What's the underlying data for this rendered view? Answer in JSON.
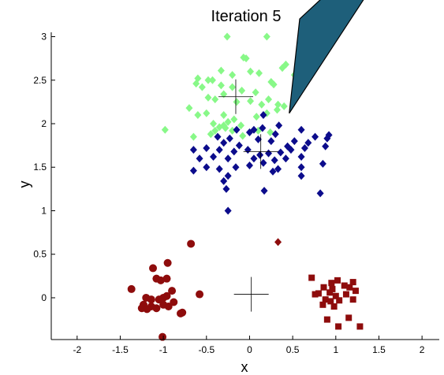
{
  "chart_data": {
    "type": "scatter",
    "title": "Iteration 5",
    "xlabel": "x",
    "ylabel": "y",
    "xlim": [
      -2.3,
      2.2
    ],
    "ylim": [
      -0.48,
      3.05
    ],
    "grid": false,
    "legend": "none",
    "x_ticks": [
      -2,
      -1.5,
      -1,
      -0.5,
      0,
      0.5,
      1,
      1.5,
      2
    ],
    "x_tick_labels": [
      "-2",
      "-1.5",
      "-1",
      "-0.5",
      "0",
      "0.5",
      "1",
      "1.5",
      "2"
    ],
    "y_ticks": [
      0,
      0.5,
      1,
      1.5,
      2,
      2.5,
      3
    ],
    "y_tick_labels": [
      "0",
      "0.5",
      "1",
      "1.5",
      "2",
      "2.5",
      "3"
    ],
    "callout": {
      "color": "#1e5f7a",
      "tip": [
        0.46,
        2.12
      ]
    },
    "series": [
      {
        "color": "#88f888",
        "marker": "diamond",
        "points": [
          [
            -0.26,
            3.0
          ],
          [
            0.2,
            3.0
          ],
          [
            -0.07,
            2.76
          ],
          [
            -0.04,
            2.75
          ],
          [
            0.42,
            2.68
          ],
          [
            0.38,
            2.64
          ],
          [
            -0.33,
            2.61
          ],
          [
            -0.2,
            2.56
          ],
          [
            0.01,
            2.6
          ],
          [
            0.11,
            2.58
          ],
          [
            -0.6,
            2.52
          ],
          [
            -0.48,
            2.5
          ],
          [
            -0.43,
            2.5
          ],
          [
            -0.62,
            2.46
          ],
          [
            0.25,
            2.48
          ],
          [
            0.52,
            2.56
          ],
          [
            -0.55,
            2.42
          ],
          [
            -0.33,
            2.44
          ],
          [
            -0.2,
            2.42
          ],
          [
            -0.09,
            2.38
          ],
          [
            0.07,
            2.36
          ],
          [
            0.28,
            2.45
          ],
          [
            0.22,
            2.28
          ],
          [
            -0.3,
            2.34
          ],
          [
            -0.48,
            2.3
          ],
          [
            -0.4,
            2.28
          ],
          [
            -0.15,
            2.25
          ],
          [
            0.01,
            2.26
          ],
          [
            0.14,
            2.22
          ],
          [
            0.33,
            2.22
          ],
          [
            0.4,
            2.2
          ],
          [
            -0.5,
            2.12
          ],
          [
            -0.7,
            2.18
          ],
          [
            -0.6,
            2.1
          ],
          [
            -0.3,
            2.1
          ],
          [
            -0.18,
            2.05
          ],
          [
            0.08,
            2.08
          ],
          [
            0.2,
            2.12
          ],
          [
            0.32,
            2.16
          ],
          [
            -0.42,
            2.0
          ],
          [
            -0.35,
            1.96
          ],
          [
            -0.28,
            1.95
          ],
          [
            -0.2,
            1.92
          ],
          [
            -0.1,
            1.98
          ],
          [
            0.1,
            1.92
          ],
          [
            -0.4,
            1.92
          ],
          [
            -0.45,
            1.88
          ],
          [
            -0.65,
            1.85
          ],
          [
            -0.98,
            1.93
          ],
          [
            -0.08,
            1.86
          ],
          [
            0.24,
            1.9
          ],
          [
            -0.3,
            1.98
          ],
          [
            -0.25,
            2.02
          ]
        ]
      },
      {
        "color": "#0c0c8c",
        "marker": "diamond",
        "points": [
          [
            0.16,
            2.1
          ],
          [
            -0.15,
            1.93
          ],
          [
            0.05,
            1.93
          ],
          [
            0.15,
            1.95
          ],
          [
            0.34,
            1.98
          ],
          [
            0.6,
            1.93
          ],
          [
            0.76,
            1.85
          ],
          [
            0.9,
            1.83
          ],
          [
            0.92,
            1.87
          ],
          [
            0.0,
            1.9
          ],
          [
            0.3,
            1.88
          ],
          [
            -0.37,
            1.85
          ],
          [
            -0.23,
            1.83
          ],
          [
            -0.3,
            1.78
          ],
          [
            -0.12,
            1.75
          ],
          [
            0.1,
            1.82
          ],
          [
            0.25,
            1.8
          ],
          [
            0.44,
            1.74
          ],
          [
            0.52,
            1.8
          ],
          [
            0.68,
            1.78
          ],
          [
            -0.65,
            1.7
          ],
          [
            -0.5,
            1.72
          ],
          [
            -0.35,
            1.7
          ],
          [
            -0.18,
            1.68
          ],
          [
            -0.02,
            1.7
          ],
          [
            0.12,
            1.64
          ],
          [
            0.22,
            1.66
          ],
          [
            0.36,
            1.67
          ],
          [
            0.48,
            1.7
          ],
          [
            0.64,
            1.72
          ],
          [
            0.88,
            1.74
          ],
          [
            -0.58,
            1.6
          ],
          [
            -0.42,
            1.62
          ],
          [
            -0.25,
            1.6
          ],
          [
            0.05,
            1.6
          ],
          [
            0.16,
            1.55
          ],
          [
            0.29,
            1.58
          ],
          [
            0.42,
            1.6
          ],
          [
            0.6,
            1.62
          ],
          [
            -0.5,
            1.5
          ],
          [
            -0.35,
            1.48
          ],
          [
            -0.16,
            1.5
          ],
          [
            0.0,
            1.52
          ],
          [
            0.27,
            1.45
          ],
          [
            0.33,
            1.48
          ],
          [
            0.6,
            1.5
          ],
          [
            0.85,
            1.54
          ],
          [
            -0.65,
            1.46
          ],
          [
            -0.25,
            1.4
          ],
          [
            0.6,
            1.4
          ],
          [
            -0.3,
            1.34
          ],
          [
            -0.27,
            1.25
          ],
          [
            0.17,
            1.23
          ],
          [
            0.82,
            1.2
          ],
          [
            -0.25,
            1.0
          ]
        ]
      },
      {
        "color": "#8e0c0c",
        "marker": "diamond",
        "points": [
          [
            0.33,
            0.64
          ]
        ]
      },
      {
        "color": "#8e0c0c",
        "marker": "circle",
        "points": [
          [
            -0.68,
            0.62
          ],
          [
            -0.95,
            0.4
          ],
          [
            -1.12,
            0.34
          ],
          [
            -1.08,
            0.22
          ],
          [
            -1.03,
            0.2
          ],
          [
            -0.96,
            0.22
          ],
          [
            -1.37,
            0.1
          ],
          [
            -0.9,
            0.08
          ],
          [
            -1.2,
            0.0
          ],
          [
            -1.14,
            -0.02
          ],
          [
            -1.05,
            -0.02
          ],
          [
            -1.0,
            0.0
          ],
          [
            -0.96,
            0.02
          ],
          [
            -0.58,
            0.04
          ],
          [
            -1.23,
            -0.08
          ],
          [
            -1.14,
            -0.1
          ],
          [
            -1.0,
            -0.08
          ],
          [
            -1.25,
            -0.12
          ],
          [
            -1.19,
            -0.13
          ],
          [
            -1.08,
            -0.12
          ],
          [
            -0.94,
            -0.1
          ],
          [
            -0.88,
            -0.05
          ],
          [
            -0.8,
            -0.18
          ],
          [
            -0.78,
            -0.17
          ],
          [
            -1.01,
            -0.45
          ]
        ]
      },
      {
        "color": "#8e0c0c",
        "marker": "square",
        "points": [
          [
            0.72,
            0.23
          ],
          [
            0.95,
            0.17
          ],
          [
            1.02,
            0.2
          ],
          [
            1.2,
            0.18
          ],
          [
            0.86,
            0.12
          ],
          [
            0.96,
            0.1
          ],
          [
            1.1,
            0.14
          ],
          [
            1.16,
            0.12
          ],
          [
            0.76,
            0.04
          ],
          [
            0.8,
            0.05
          ],
          [
            0.93,
            0.06
          ],
          [
            1.0,
            0.02
          ],
          [
            1.12,
            0.04
          ],
          [
            1.23,
            0.08
          ],
          [
            0.88,
            -0.02
          ],
          [
            0.94,
            -0.04
          ],
          [
            1.04,
            -0.03
          ],
          [
            1.2,
            -0.02
          ],
          [
            0.85,
            -0.08
          ],
          [
            0.98,
            -0.1
          ],
          [
            0.9,
            -0.25
          ],
          [
            1.15,
            -0.23
          ],
          [
            1.03,
            -0.33
          ],
          [
            1.28,
            -0.33
          ]
        ]
      }
    ],
    "centroids": [
      {
        "x": -0.16,
        "y": 2.31
      },
      {
        "x": 0.13,
        "y": 1.68
      },
      {
        "x": 0.02,
        "y": 0.04
      }
    ]
  }
}
